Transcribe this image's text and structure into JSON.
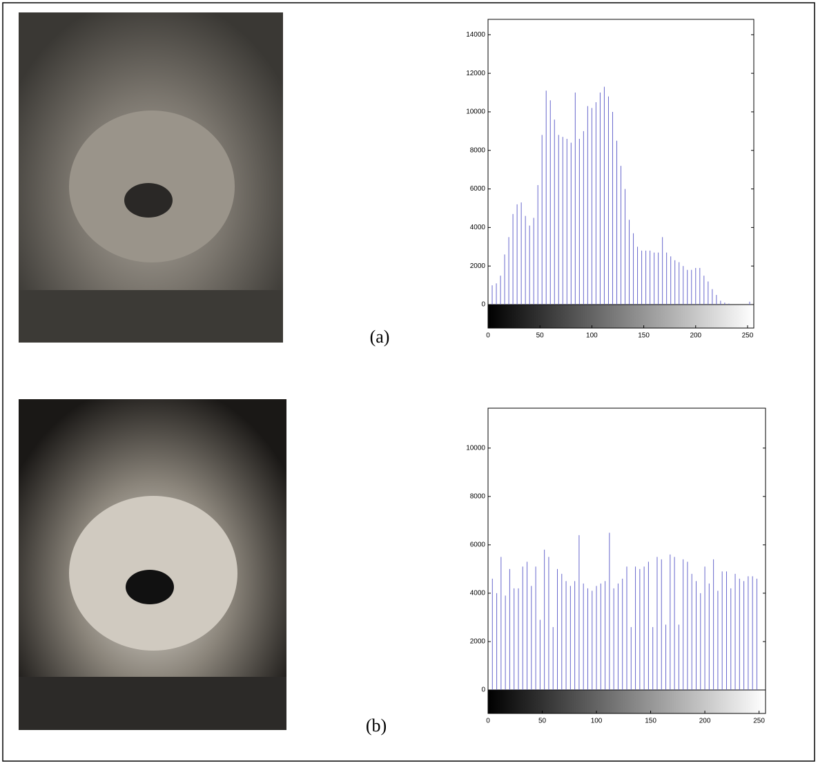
{
  "chart_data": [
    {
      "type": "stem",
      "annotation": "(a)",
      "color": "#6666cc",
      "xlim": [
        0,
        256
      ],
      "xticks": [
        0,
        50,
        100,
        150,
        200,
        250
      ],
      "ylim": [
        0,
        14800
      ],
      "yticks": [
        0,
        2000,
        4000,
        6000,
        8000,
        10000,
        12000,
        14000
      ],
      "x": [
        4,
        8,
        12,
        16,
        20,
        24,
        28,
        32,
        36,
        40,
        44,
        48,
        52,
        56,
        60,
        64,
        68,
        72,
        76,
        80,
        84,
        88,
        92,
        96,
        100,
        104,
        108,
        112,
        116,
        120,
        124,
        128,
        132,
        136,
        140,
        144,
        148,
        152,
        156,
        160,
        164,
        168,
        172,
        176,
        180,
        184,
        188,
        192,
        196,
        200,
        204,
        208,
        212,
        216,
        220,
        224,
        228,
        232,
        236,
        240,
        244,
        248,
        252
      ],
      "values": [
        1000,
        1100,
        1500,
        2600,
        3500,
        4700,
        5200,
        5300,
        4600,
        4100,
        4500,
        6200,
        8800,
        11100,
        10600,
        9600,
        8800,
        8700,
        8600,
        8400,
        11000,
        8600,
        9000,
        10300,
        10200,
        10500,
        11000,
        11300,
        10800,
        10000,
        8500,
        7200,
        6000,
        4400,
        3700,
        3000,
        2800,
        2800,
        2800,
        2700,
        2700,
        3500,
        2700,
        2500,
        2300,
        2200,
        2000,
        1800,
        1800,
        1900,
        1900,
        1500,
        1200,
        800,
        500,
        200,
        100,
        50,
        0,
        0,
        0,
        0,
        150
      ]
    },
    {
      "type": "stem",
      "annotation": "(b)",
      "color": "#6666cc",
      "xlim": [
        0,
        256
      ],
      "xticks": [
        0,
        50,
        100,
        150,
        200,
        250
      ],
      "ylim": [
        0,
        11650
      ],
      "yticks": [
        0,
        2000,
        4000,
        6000,
        8000,
        10000
      ],
      "x": [
        4,
        8,
        12,
        16,
        20,
        24,
        28,
        32,
        36,
        40,
        44,
        48,
        52,
        56,
        60,
        64,
        68,
        72,
        76,
        80,
        84,
        88,
        92,
        96,
        100,
        104,
        108,
        112,
        116,
        120,
        124,
        128,
        132,
        136,
        140,
        144,
        148,
        152,
        156,
        160,
        164,
        168,
        172,
        176,
        180,
        184,
        188,
        192,
        196,
        200,
        204,
        208,
        212,
        216,
        220,
        224,
        228,
        232,
        236,
        240,
        244,
        248
      ],
      "values": [
        4600,
        4000,
        5500,
        3900,
        5000,
        4200,
        4200,
        5100,
        5300,
        4300,
        5100,
        2900,
        5800,
        5500,
        2600,
        5000,
        4800,
        4500,
        4300,
        4500,
        6400,
        4400,
        4200,
        4100,
        4300,
        4400,
        4500,
        6500,
        4200,
        4400,
        4600,
        5100,
        2600,
        5100,
        5000,
        5100,
        5300,
        2600,
        5500,
        5400,
        2700,
        5600,
        5500,
        2700,
        5400,
        5300,
        4800,
        4500,
        4000,
        5100,
        4400,
        5400,
        4100,
        4900,
        4900,
        4200,
        4800,
        4600,
        4500,
        4700,
        4700,
        4600
      ]
    }
  ]
}
